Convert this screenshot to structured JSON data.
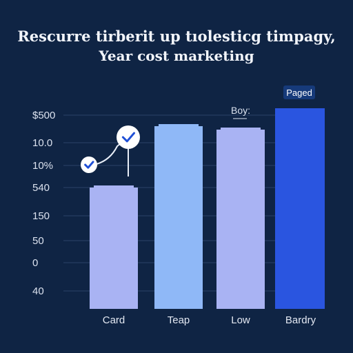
{
  "header": {
    "title_line1": "Rescurre tirberit up tıolesticg timpagy,",
    "title_line2": "Year cost marketing"
  },
  "chart_data": {
    "type": "bar",
    "title": "Rescurre tirberit up tıolesticg timpagy, Year cost marketing",
    "categories": [
      "Card",
      "Teap",
      "Low",
      "Bardry"
    ],
    "values": [
      340,
      520,
      510,
      580
    ],
    "y_tick_labels": [
      "$500",
      "10.0",
      "10%",
      "540",
      "150",
      "50",
      "0",
      "40"
    ],
    "ylim": [
      0,
      600
    ],
    "grid": true,
    "colors": [
      "#a9b3f3",
      "#8fb8f7",
      "#a9b3f3",
      "#2a55e0"
    ],
    "annotations": {
      "badge": "Paged",
      "bar_label": "Boy:"
    }
  }
}
